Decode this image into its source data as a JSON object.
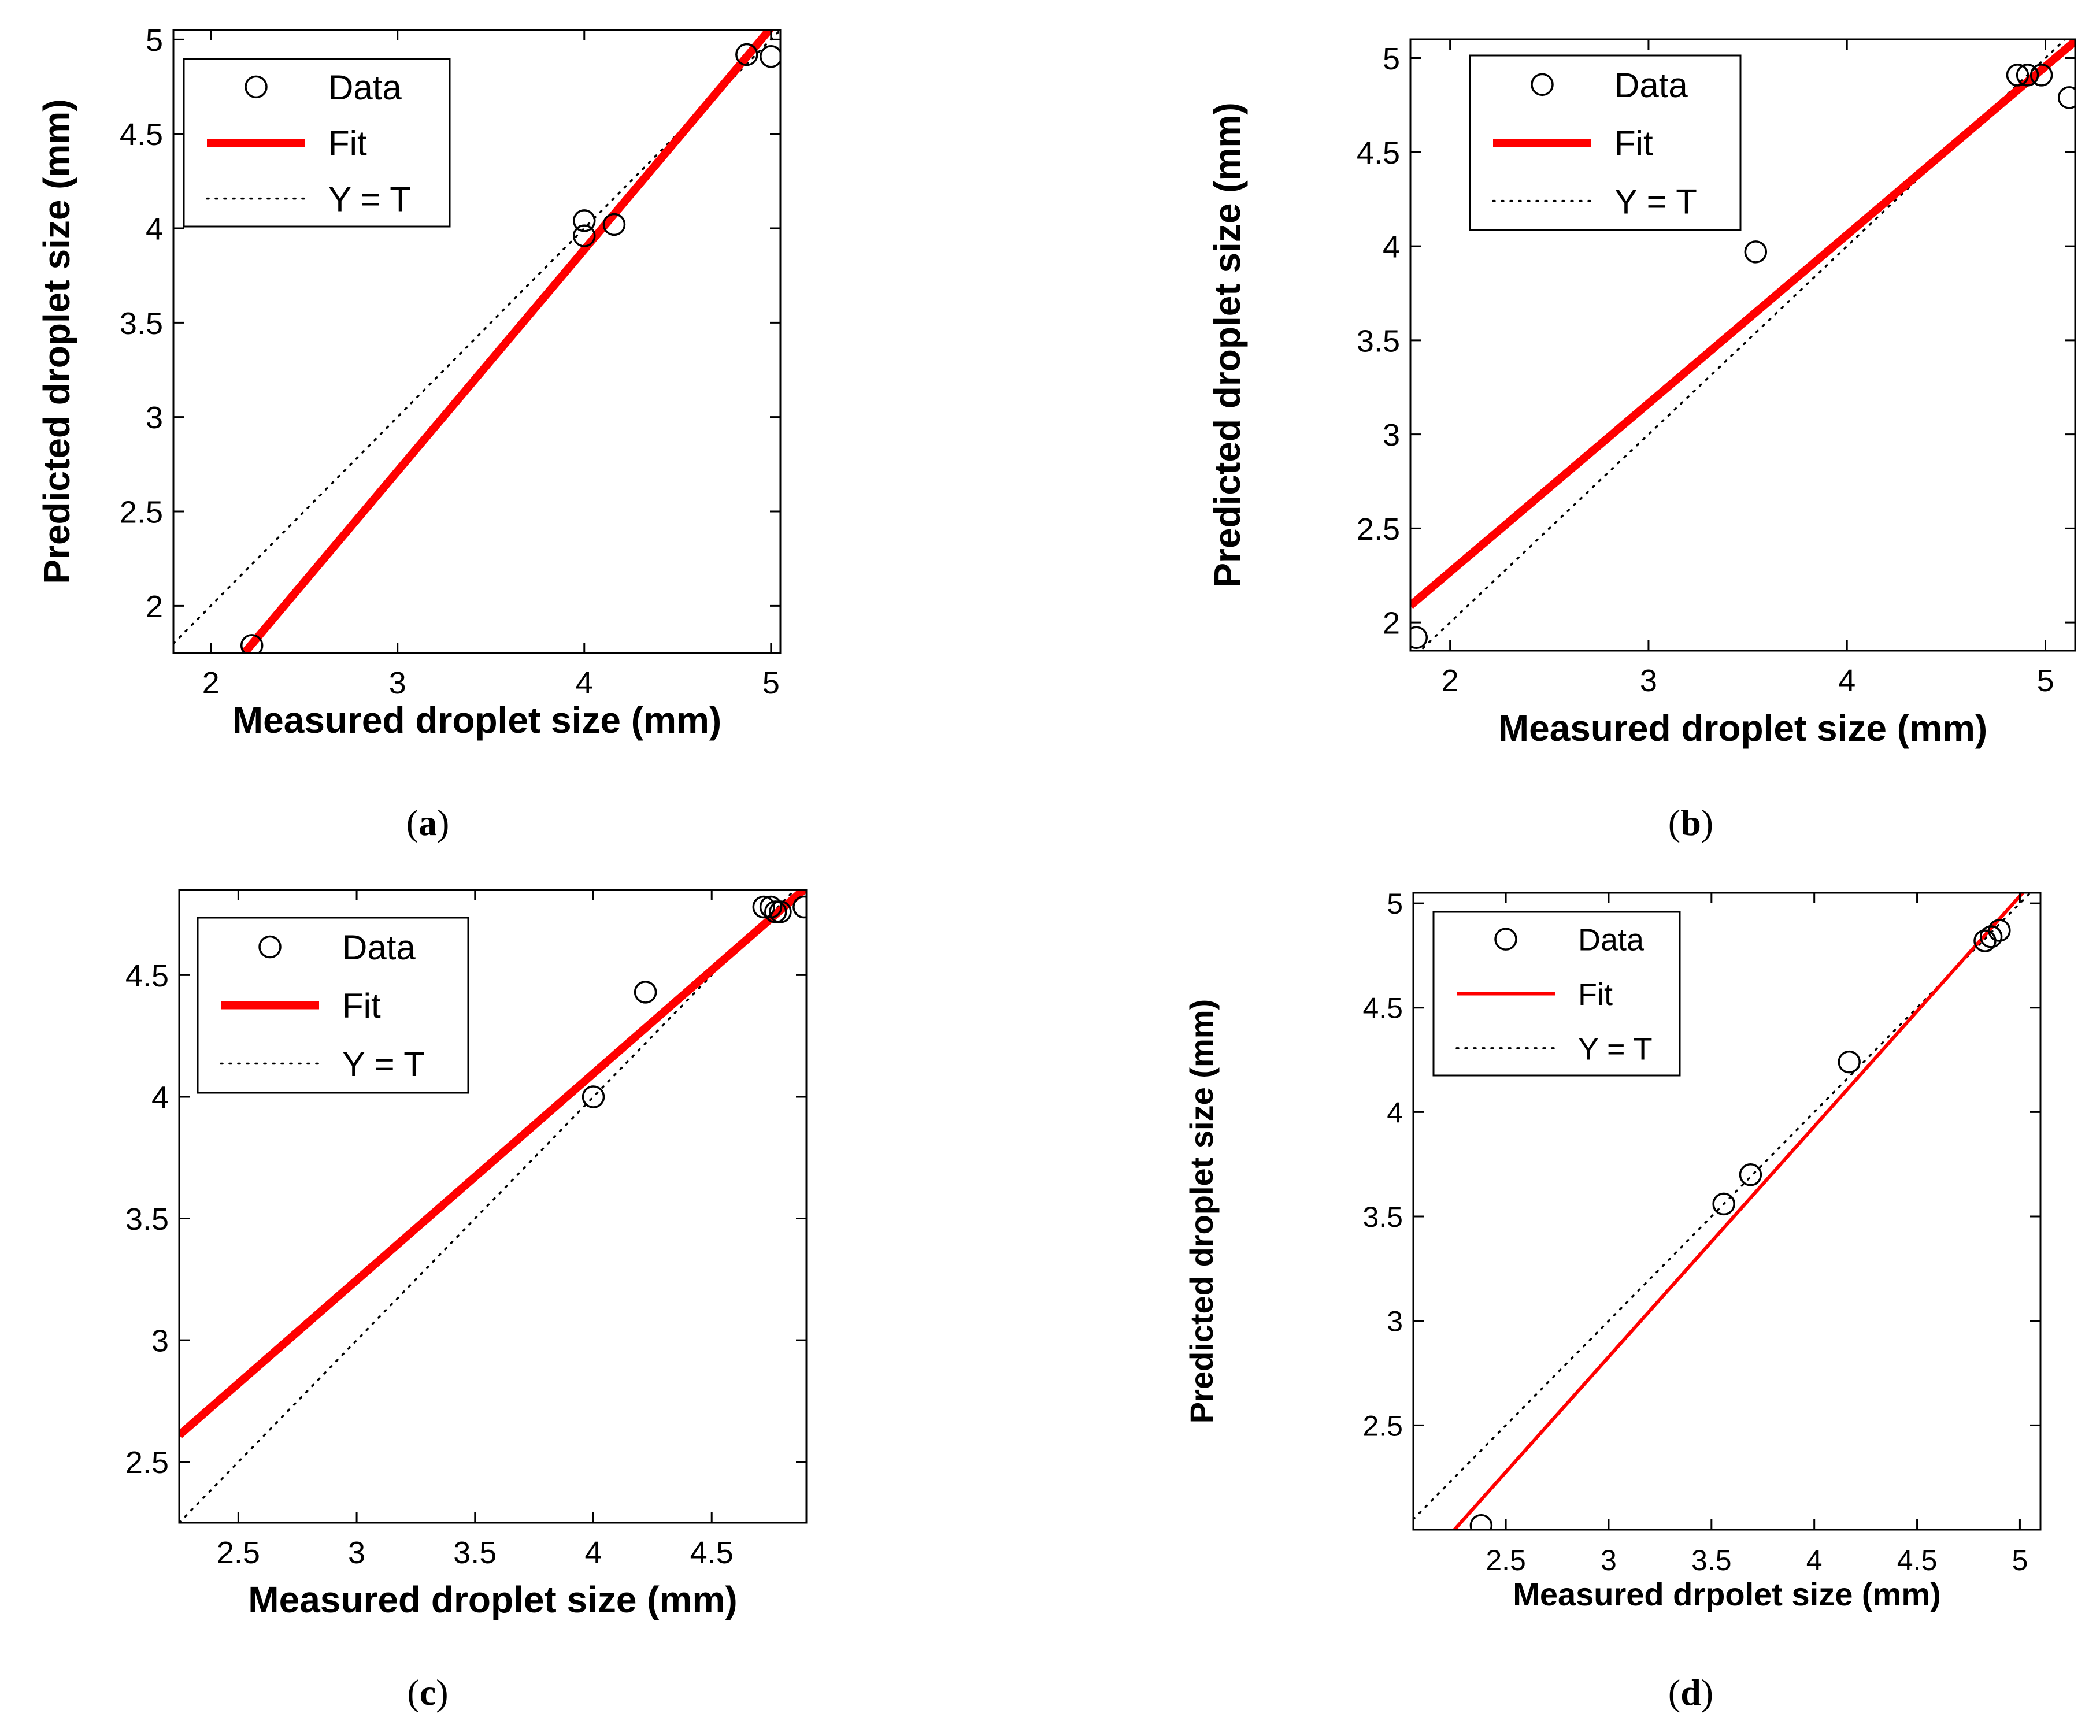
{
  "colors": {
    "fit": "#ff0000",
    "data_marker": "#000000",
    "identity_line": "#000000",
    "axes": "#000000",
    "background": "#ffffff"
  },
  "chart_data": [
    {
      "type": "scatter",
      "caption_letter": "a",
      "xlabel": "Measured droplet size (mm)",
      "ylabel": "Predicted droplet size (mm)",
      "xlim": [
        1.8,
        5.05
      ],
      "ylim": [
        1.75,
        5.05
      ],
      "xticks": [
        2,
        3,
        4,
        5
      ],
      "yticks": [
        2,
        2.5,
        3,
        3.5,
        4,
        4.5,
        5
      ],
      "xtick_labels": [
        "2",
        "3",
        "4",
        "5"
      ],
      "ytick_labels": [
        "2",
        "2.5",
        "3",
        "3.5",
        "4",
        "4.5",
        "5"
      ],
      "grid": false,
      "legend_position": "top-left",
      "legend": [
        {
          "label": "Data",
          "style": "marker"
        },
        {
          "label": "Fit",
          "style": "thick-line"
        },
        {
          "label": "Y = T",
          "style": "dotted-line"
        }
      ],
      "series": [
        {
          "name": "Data",
          "kind": "points",
          "x": [
            2.22,
            4.0,
            4.0,
            4.16,
            4.87,
            5.0
          ],
          "y": [
            1.79,
            3.96,
            4.04,
            4.02,
            4.92,
            4.91
          ]
        },
        {
          "name": "Fit",
          "kind": "line",
          "x": [
            2.18,
            5.05
          ],
          "y": [
            1.75,
            5.12
          ]
        },
        {
          "name": "Y = T",
          "kind": "line",
          "x": [
            1.8,
            5.05
          ],
          "y": [
            1.8,
            5.05
          ]
        }
      ]
    },
    {
      "type": "scatter",
      "caption_letter": "b",
      "xlabel": "Measured droplet size (mm)",
      "ylabel": "Predicted droplet size (mm)",
      "xlim": [
        1.8,
        5.15
      ],
      "ylim": [
        1.85,
        5.1
      ],
      "xticks": [
        2,
        3,
        4,
        5
      ],
      "yticks": [
        2,
        2.5,
        3,
        3.5,
        4,
        4.5,
        5
      ],
      "xtick_labels": [
        "2",
        "3",
        "4",
        "5"
      ],
      "ytick_labels": [
        "2",
        "2.5",
        "3",
        "3.5",
        "4",
        "4.5",
        "5"
      ],
      "grid": false,
      "legend_position": "top-left",
      "legend": [
        {
          "label": "Data",
          "style": "marker"
        },
        {
          "label": "Fit",
          "style": "thick-line"
        },
        {
          "label": "Y = T",
          "style": "dotted-line"
        }
      ],
      "series": [
        {
          "name": "Data",
          "kind": "points",
          "x": [
            1.83,
            3.54,
            4.86,
            4.91,
            4.98,
            5.12
          ],
          "y": [
            1.92,
            3.97,
            4.91,
            4.91,
            4.91,
            4.79
          ]
        },
        {
          "name": "Fit",
          "kind": "line",
          "x": [
            1.8,
            5.15
          ],
          "y": [
            2.09,
            5.09
          ]
        },
        {
          "name": "Y = T",
          "kind": "line",
          "x": [
            1.8,
            5.15
          ],
          "y": [
            1.8,
            5.15
          ]
        }
      ]
    },
    {
      "type": "scatter",
      "caption_letter": "c",
      "xlabel": "Measured droplet size (mm)",
      "ylabel": "Predicted droplet size (mm)",
      "xlim": [
        2.25,
        4.9
      ],
      "ylim": [
        2.25,
        4.85
      ],
      "xticks": [
        2.5,
        3,
        3.5,
        4,
        4.5
      ],
      "yticks": [
        2.5,
        3,
        3.5,
        4,
        4.5
      ],
      "xtick_labels": [
        "2.5",
        "3",
        "3.5",
        "4",
        "4.5"
      ],
      "ytick_labels": [
        "2.5",
        "3",
        "3.5",
        "4",
        "4.5"
      ],
      "grid": false,
      "legend_position": "top-left",
      "legend": [
        {
          "label": "Data",
          "style": "marker"
        },
        {
          "label": "Fit",
          "style": "thick-line"
        },
        {
          "label": "Y = T",
          "style": "dotted-line"
        }
      ],
      "series": [
        {
          "name": "Data",
          "kind": "points",
          "x": [
            4.0,
            4.22,
            4.72,
            4.75,
            4.77,
            4.79,
            4.89
          ],
          "y": [
            4.0,
            4.43,
            4.78,
            4.78,
            4.76,
            4.76,
            4.78
          ]
        },
        {
          "name": "Fit",
          "kind": "line",
          "x": [
            2.25,
            4.9
          ],
          "y": [
            2.61,
            4.86
          ]
        },
        {
          "name": "Y = T",
          "kind": "line",
          "x": [
            2.25,
            4.9
          ],
          "y": [
            2.25,
            4.9
          ]
        }
      ]
    },
    {
      "type": "scatter",
      "caption_letter": "d",
      "xlabel": "Measured drpolet size (mm)",
      "ylabel": "Predicted droplet size (mm)",
      "xlim": [
        2.05,
        5.1
      ],
      "ylim": [
        2.0,
        5.05
      ],
      "xticks": [
        2.5,
        3,
        3.5,
        4,
        4.5,
        5
      ],
      "yticks": [
        2.5,
        3,
        3.5,
        4,
        4.5,
        5
      ],
      "xtick_labels": [
        "2.5",
        "3",
        "3.5",
        "4",
        "4.5",
        "5"
      ],
      "ytick_labels": [
        "2.5",
        "3",
        "3.5",
        "4",
        "4.5",
        "5"
      ],
      "grid": false,
      "legend_position": "top-left",
      "legend": [
        {
          "label": "Data",
          "style": "marker"
        },
        {
          "label": "Fit",
          "style": "thin-line"
        },
        {
          "label": "Y = T",
          "style": "dotted-line"
        }
      ],
      "series": [
        {
          "name": "Data",
          "kind": "points",
          "x": [
            2.38,
            3.56,
            3.69,
            4.17,
            4.83,
            4.86,
            4.9
          ],
          "y": [
            2.02,
            3.56,
            3.7,
            4.24,
            4.82,
            4.84,
            4.87
          ]
        },
        {
          "name": "Fit",
          "kind": "line",
          "x": [
            2.25,
            5.05
          ],
          "y": [
            2.0,
            5.09
          ]
        },
        {
          "name": "Y = T",
          "kind": "line",
          "x": [
            2.05,
            5.1
          ],
          "y": [
            2.05,
            5.1
          ]
        }
      ]
    }
  ]
}
